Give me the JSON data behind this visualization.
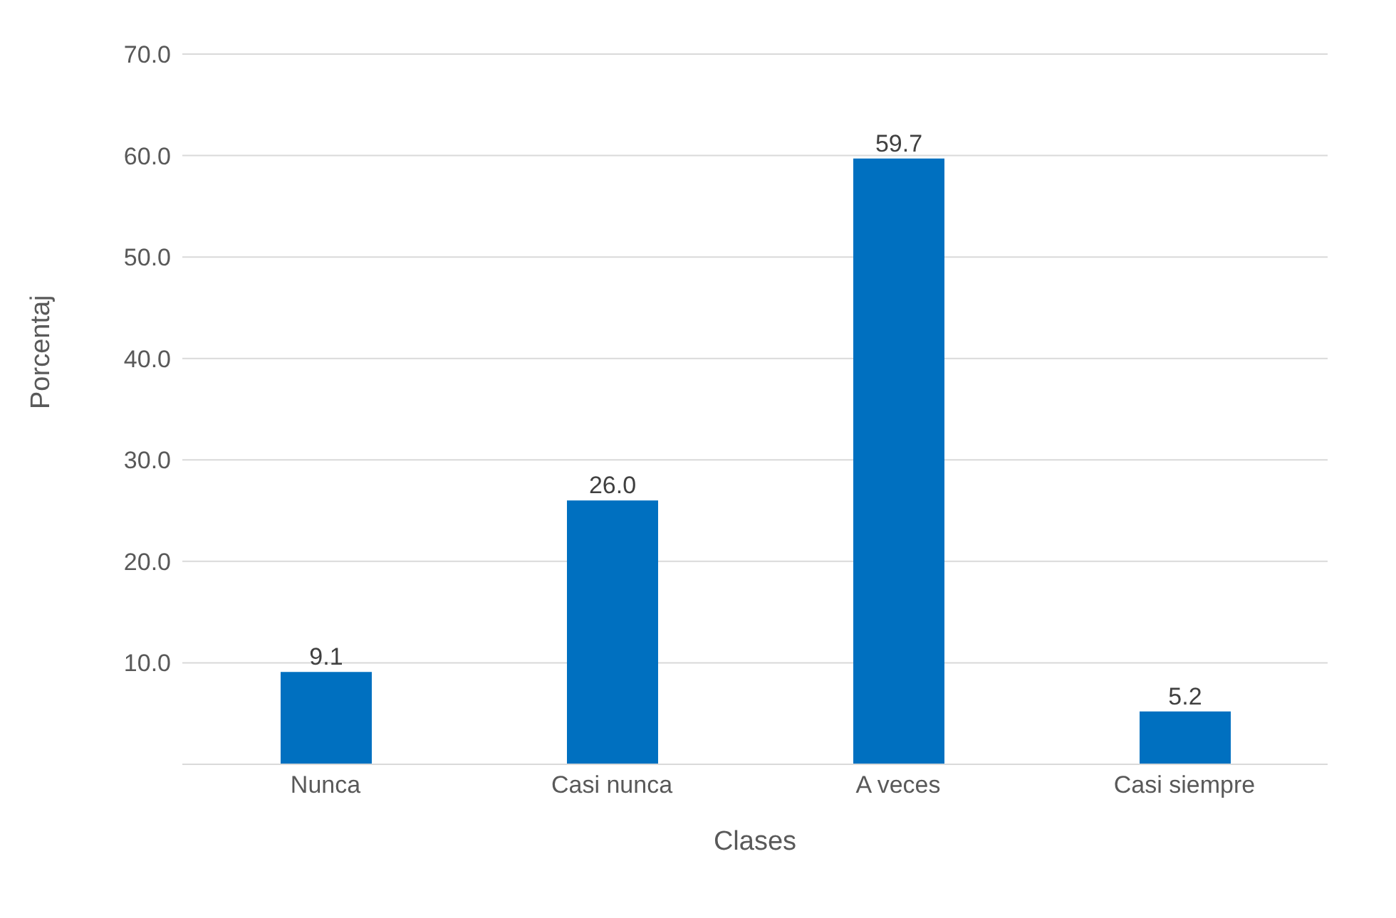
{
  "chart_data": {
    "type": "bar",
    "xlabel": "Clases",
    "ylabel": "Porcentaj",
    "categories": [
      "Nunca",
      "Casi nunca",
      "A veces",
      "Casi siempre"
    ],
    "values": [
      9.1,
      26.0,
      59.7,
      5.2
    ],
    "color": "#0070c0",
    "value_labels": [
      "9.1",
      "26.0",
      "59.7",
      "5.2"
    ],
    "ylim": [
      0,
      70
    ],
    "yticks": [
      {
        "value": 0,
        "label": null
      },
      {
        "value": 10,
        "label": "10.0"
      },
      {
        "value": 20,
        "label": "20.0"
      },
      {
        "value": 30,
        "label": "30.0"
      },
      {
        "value": 40,
        "label": "40.0"
      },
      {
        "value": 50,
        "label": "50.0"
      },
      {
        "value": 60,
        "label": "60.0"
      },
      {
        "value": 70,
        "label": "70.0"
      }
    ],
    "grid": "y",
    "legend": false
  }
}
